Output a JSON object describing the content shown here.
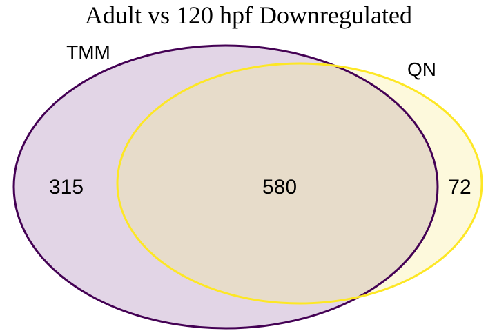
{
  "title": "Adult vs 120 hpf Downregulated",
  "sets": [
    {
      "name": "TMM",
      "fill_color": "#e2d5e6",
      "stroke_color": "#440154"
    },
    {
      "name": "QN",
      "fill_color": "#fdf9dc",
      "stroke_color": "#fde725"
    }
  ],
  "regions": {
    "tmm_only": "315",
    "both": "580",
    "qn_only": "72"
  },
  "overlap_fill_color": "#e7dcca"
}
